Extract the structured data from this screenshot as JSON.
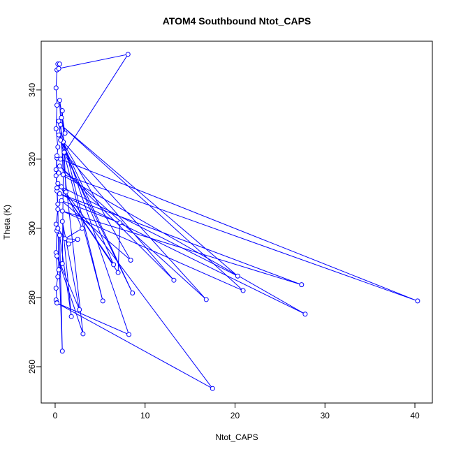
{
  "chart_data": {
    "type": "line",
    "title": "ATOM4 Southbound Ntot_CAPS",
    "x_label": "Ntot_CAPS",
    "y_label": "Theta (K)",
    "color": "#0000ff",
    "markers": true,
    "x": [
      0.1,
      0.2,
      0.1,
      0.3,
      0.1,
      0.2,
      0.1,
      0.3,
      0.2,
      0.1,
      0.2,
      0.3,
      0.1,
      0.2,
      0.1,
      0.2,
      0.3,
      0.5,
      0.4,
      8.1,
      0.6,
      40.3,
      0.4,
      27.8,
      0.5,
      27.4,
      0.8,
      20.9,
      0.6,
      20.3,
      0.7,
      17.5,
      0.2,
      8.2,
      0.9,
      16.8,
      0.5,
      13.2,
      1.0,
      8.6,
      0.4,
      8.4,
      0.7,
      7.2,
      7.0,
      0.3,
      6.5,
      0.6,
      5.3,
      0.4,
      3.1,
      0.2,
      2.7,
      0.8,
      1.8,
      0.5,
      0.8,
      0.3,
      1.5,
      2.5,
      1.1,
      3.0,
      1.2,
      0.8,
      0.7,
      1.1,
      0.5,
      0.9,
      0.8,
      0.4,
      0.3,
      0.2,
      0.1,
      0.2
    ],
    "values": [
      279.3,
      278.5,
      282.7,
      286,
      293,
      299.3,
      301.2,
      305.5,
      310.8,
      315.2,
      320.3,
      323.5,
      328.8,
      335.6,
      340.6,
      345.8,
      347.5,
      347.5,
      346.2,
      350.3,
      320,
      279,
      316,
      275.2,
      310,
      283.7,
      305,
      282,
      330,
      286.2,
      312,
      253.7,
      278.4,
      269.3,
      325,
      279.4,
      318,
      285,
      322,
      281.3,
      327,
      290.8,
      308,
      301.6,
      287.2,
      313,
      289.5,
      325.5,
      279,
      331,
      269.5,
      292,
      276.5,
      302,
      274.5,
      298,
      264.5,
      300,
      295.5,
      296.8,
      297,
      300,
      310.5,
      334,
      332,
      327.5,
      337,
      315.5,
      289.8,
      288,
      307,
      311.7,
      317,
      321
    ],
    "xlim": [
      -1.55,
      41.94
    ],
    "ylim": [
      249.5,
      354.1
    ],
    "xticks": [
      0,
      10,
      20,
      30,
      40
    ],
    "yticks": [
      260,
      280,
      300,
      320,
      340
    ]
  }
}
